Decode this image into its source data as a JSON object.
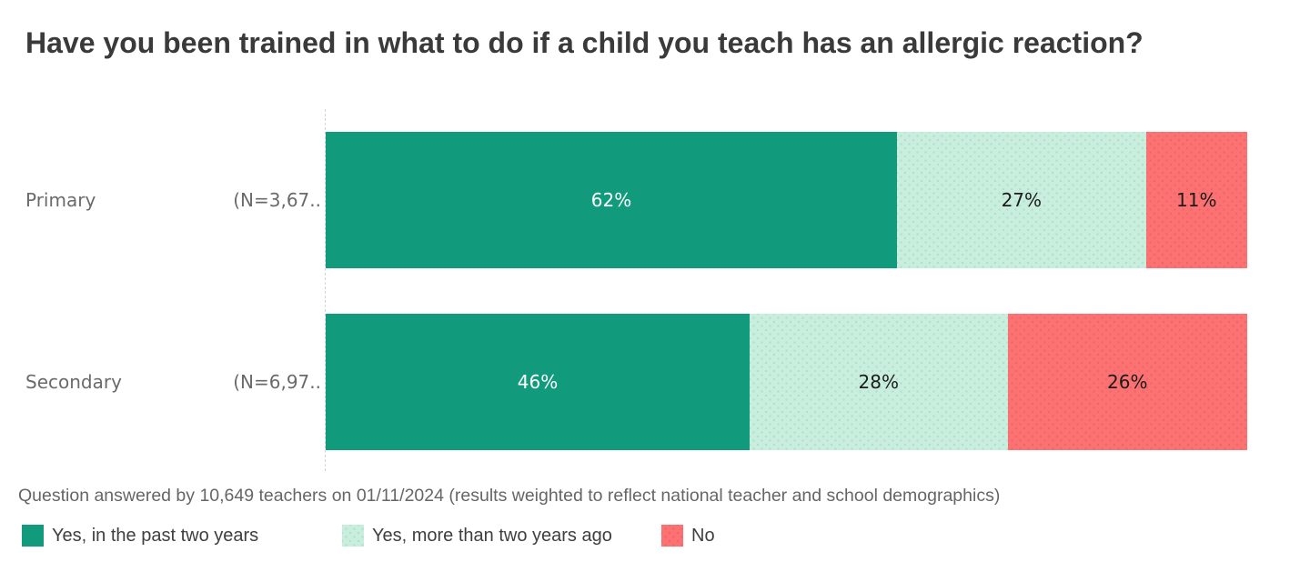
{
  "title": "Have you been trained in what to do if a child you teach has an allergic reaction?",
  "footnote": "Question answered by 10,649 teachers on 01/11/2024 (results weighted to reflect national teacher and school demographics)",
  "colors": {
    "background": "#ffffff",
    "title_text": "#3a3a3a",
    "axis_label_text": "#6a6a6a",
    "footnote_text": "#666666",
    "legend_text": "#3f3f3f",
    "dashed_baseline": "#d4d4d4",
    "series_dark_green": "#119b7c",
    "series_light_green": "#c9eedd",
    "series_red": "#fc7272",
    "value_label_on_dark": "#ffffff",
    "value_label_on_light": "#1c1c1c"
  },
  "chart_data": {
    "type": "bar",
    "orientation": "horizontal",
    "stacked": true,
    "x_max": 100,
    "value_suffix": "%",
    "grid": "off",
    "legend_position": "bottom",
    "categories": [
      "Primary",
      "Secondary"
    ],
    "category_sample_labels": [
      "(N=3,67..",
      "(N=6,97.."
    ],
    "series": [
      {
        "name": "Yes, in the past two years",
        "color": "#119b7c",
        "texture": false,
        "values": [
          62,
          46
        ]
      },
      {
        "name": "Yes, more than two years ago",
        "color": "#c9eedd",
        "texture": true,
        "values": [
          27,
          28
        ]
      },
      {
        "name": "No",
        "color": "#fc7272",
        "texture": true,
        "values": [
          11,
          26
        ]
      }
    ]
  }
}
